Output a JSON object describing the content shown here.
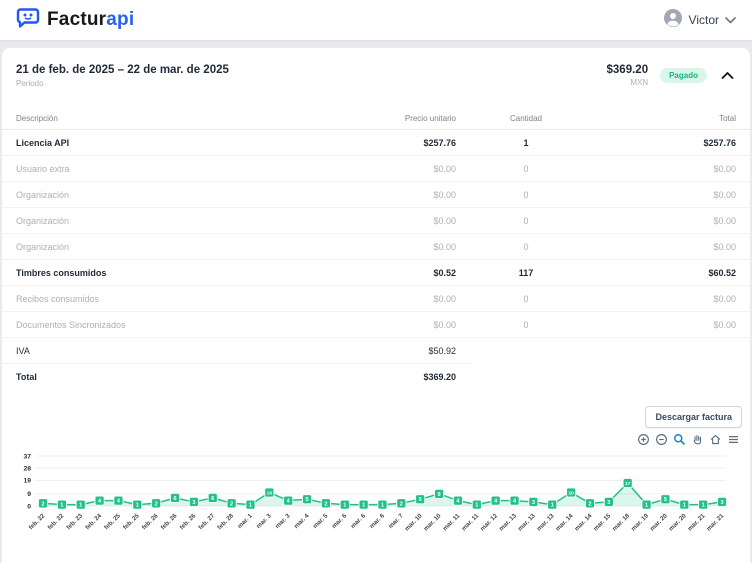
{
  "header": {
    "brand_prefix": "Factur",
    "brand_suffix": "api",
    "user_name": "Victor"
  },
  "period": {
    "range": "21 de feb. de 2025 – 22 de mar. de 2025",
    "label": "Periodo",
    "amount": "$369.20",
    "currency": "MXN",
    "status": "Pagado"
  },
  "table": {
    "columns": [
      "Descripción",
      "Precio unitario",
      "Cantidad",
      "Total"
    ],
    "rows": [
      {
        "description": "Licencia API",
        "unit_price": "$257.76",
        "quantity": "1",
        "total": "$257.76",
        "emphasis": "strong"
      },
      {
        "description": "Usuario extra",
        "unit_price": "$0.00",
        "quantity": "0",
        "total": "$0.00",
        "emphasis": "muted"
      },
      {
        "description": "Organización",
        "unit_price": "$0.00",
        "quantity": "0",
        "total": "$0.00",
        "emphasis": "muted"
      },
      {
        "description": "Organización",
        "unit_price": "$0.00",
        "quantity": "0",
        "total": "$0.00",
        "emphasis": "muted"
      },
      {
        "description": "Organización",
        "unit_price": "$0.00",
        "quantity": "0",
        "total": "$0.00",
        "emphasis": "muted"
      },
      {
        "description": "Timbres consumidos",
        "unit_price": "$0.52",
        "quantity": "117",
        "total": "$60.52",
        "emphasis": "strong"
      },
      {
        "description": "Recibos consumidos",
        "unit_price": "$0.00",
        "quantity": "0",
        "total": "$0.00",
        "emphasis": "muted"
      },
      {
        "description": "Documentos Sincronizados",
        "unit_price": "$0.00",
        "quantity": "0",
        "total": "$0.00",
        "emphasis": "muted"
      },
      {
        "description": "IVA",
        "unit_price": "$50.92",
        "quantity": "",
        "total": "",
        "emphasis": "normal"
      },
      {
        "description": "Total",
        "unit_price": "$369.20",
        "quantity": "",
        "total": "",
        "emphasis": "strong"
      }
    ]
  },
  "actions": {
    "download_label": "Descargar factura"
  },
  "modebar": {
    "tools": [
      "zoom-in",
      "zoom-out",
      "box-zoom",
      "pan",
      "home",
      "menu"
    ],
    "active_tool": "box-zoom",
    "icon_color": "#5b6b7b",
    "active_color": "#1c7ed6"
  },
  "chart_data": {
    "type": "line",
    "title": "",
    "xlabel": "",
    "ylabel": "",
    "x_labels": [
      "feb. 22",
      "feb. 22",
      "feb. 23",
      "feb. 24",
      "feb. 25",
      "feb. 25",
      "feb. 26",
      "feb. 26",
      "feb. 26",
      "feb. 27",
      "feb. 28",
      "mar. 1",
      "mar. 3",
      "mar. 3",
      "mar. 4",
      "mar. 5",
      "mar. 6",
      "mar. 6",
      "mar. 6",
      "mar. 7",
      "mar. 10",
      "mar. 10",
      "mar. 11",
      "mar. 11",
      "mar. 12",
      "mar. 13",
      "mar. 13",
      "mar. 13",
      "mar. 14",
      "mar. 14",
      "mar. 15",
      "mar. 18",
      "mar. 19",
      "mar. 20",
      "mar. 20",
      "mar. 21",
      "mar. 21"
    ],
    "values": [
      2,
      1,
      1,
      4,
      4,
      1,
      2,
      6,
      3,
      6,
      2,
      1,
      10,
      4,
      5,
      2,
      1,
      1,
      1,
      2,
      5,
      9,
      4,
      1,
      4,
      4,
      3,
      1,
      10,
      2,
      3,
      17,
      1,
      5,
      1,
      1,
      3
    ],
    "ylim": [
      0,
      37
    ],
    "yticks": [
      0,
      9,
      19,
      28,
      37
    ],
    "grid": true,
    "legend": "none",
    "line_color": "#23c08c",
    "fill_color": "rgba(35,192,140,0.16)",
    "marker_shape": "square",
    "marker_text_color": "#ffffff"
  }
}
